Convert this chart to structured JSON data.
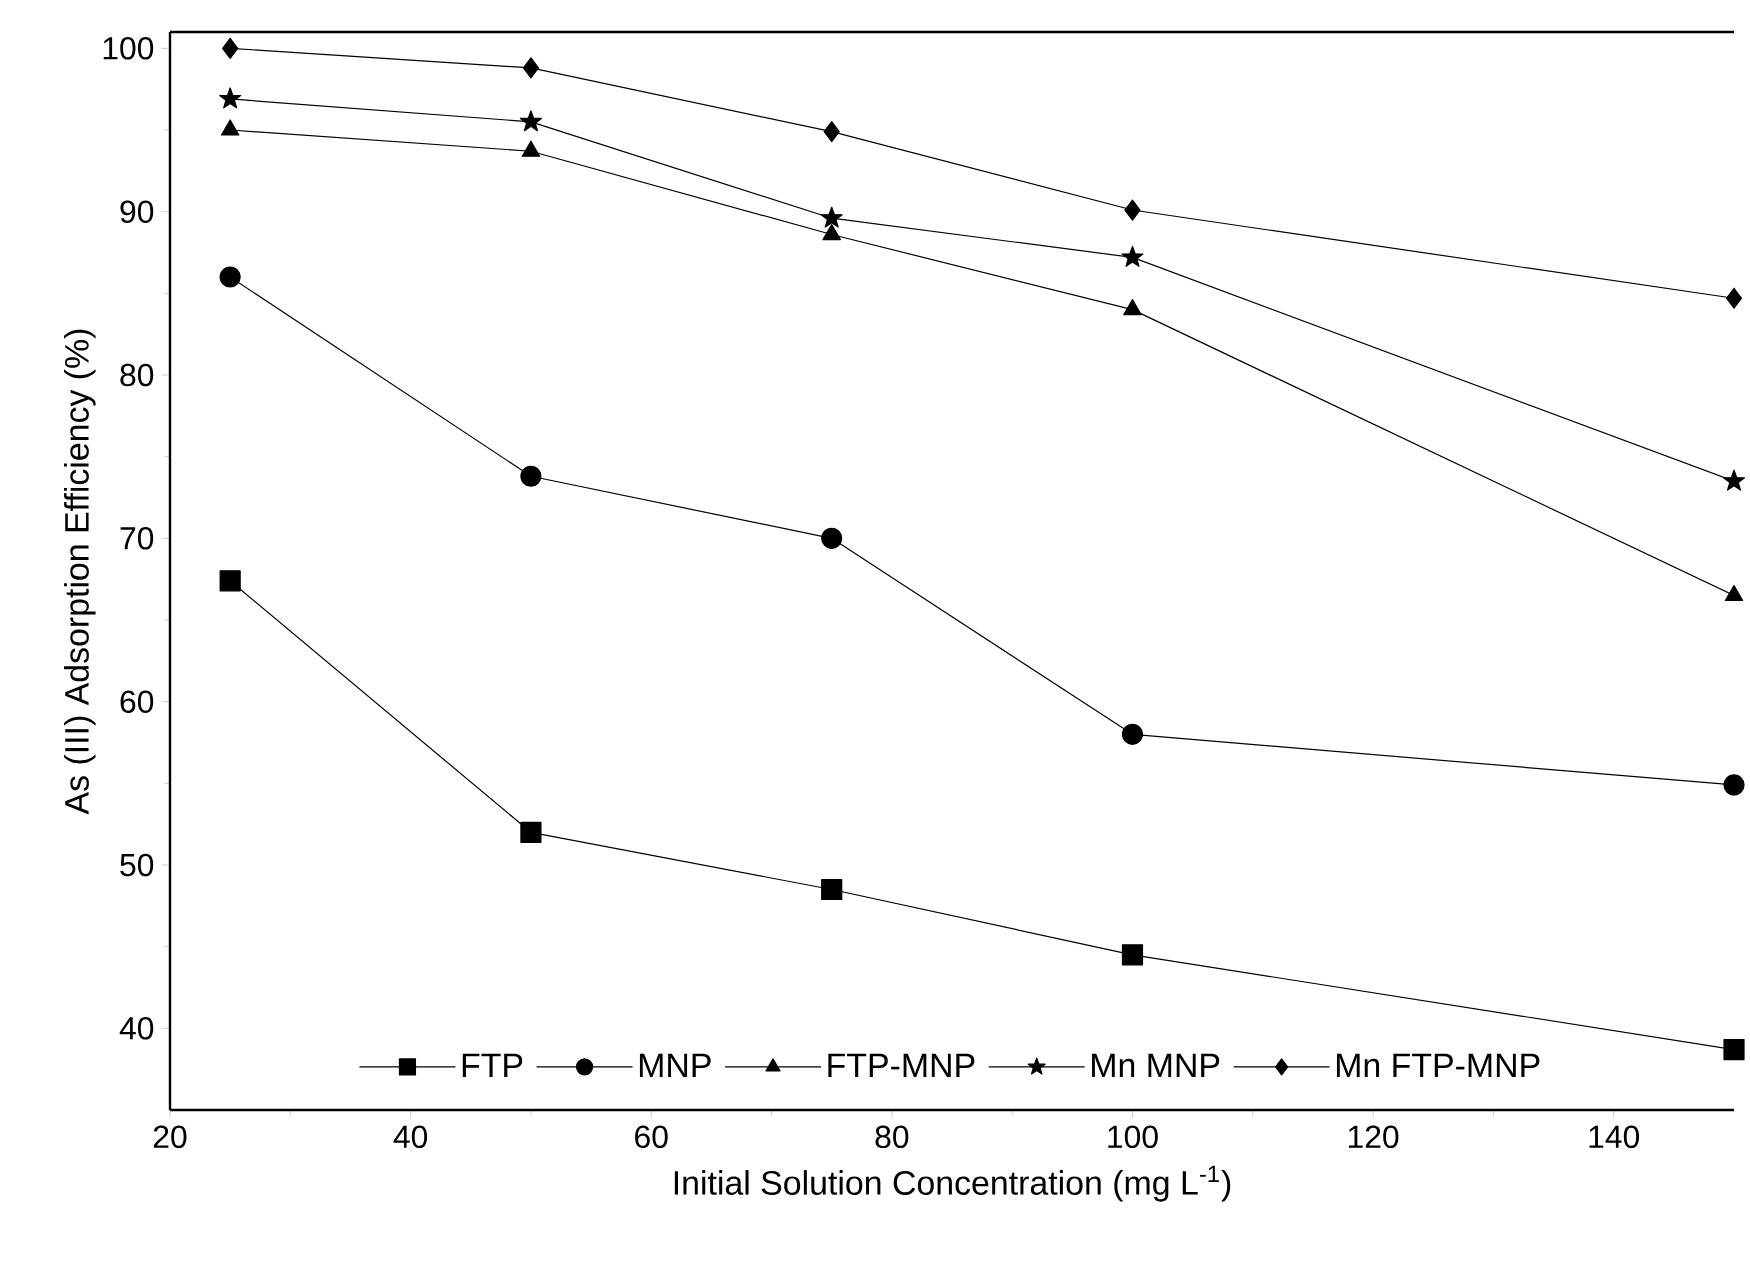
{
  "chart_data": {
    "type": "line",
    "xlabel": "Initial Solution Concentration (mg L$^{-1}$)",
    "ylabel": "As (III) Adsorption Efficiency (%)",
    "x": [
      25,
      50,
      75,
      100,
      150
    ],
    "series": [
      {
        "name": "FTP",
        "color": "#000000",
        "marker": "square",
        "values": [
          67.4,
          52,
          48.5,
          44.5,
          38.7
        ]
      },
      {
        "name": "MNP",
        "color": "#000000",
        "marker": "circle",
        "values": [
          86,
          73.8,
          70,
          58,
          54.9
        ]
      },
      {
        "name": "FTP-MNP",
        "color": "#000000",
        "marker": "triangle",
        "values": [
          95,
          93.7,
          88.6,
          84,
          66.5
        ]
      },
      {
        "name": "Mn MNP",
        "color": "#000000",
        "marker": "star",
        "values": [
          96.9,
          95.5,
          89.6,
          87.2,
          73.5
        ]
      },
      {
        "name": "Mn FTP-MNP",
        "color": "#000000",
        "marker": "diamond",
        "values": [
          100,
          98.8,
          94.9,
          90.1,
          84.7
        ]
      }
    ],
    "xlim": [
      20,
      150
    ],
    "ylim": [
      35,
      101
    ],
    "xticks": [
      20,
      40,
      60,
      80,
      100,
      120,
      140
    ],
    "yticks": [
      40,
      50,
      60,
      70,
      80,
      90,
      100
    ],
    "legend": "bottom",
    "line_style": "solid",
    "grid": false
  }
}
